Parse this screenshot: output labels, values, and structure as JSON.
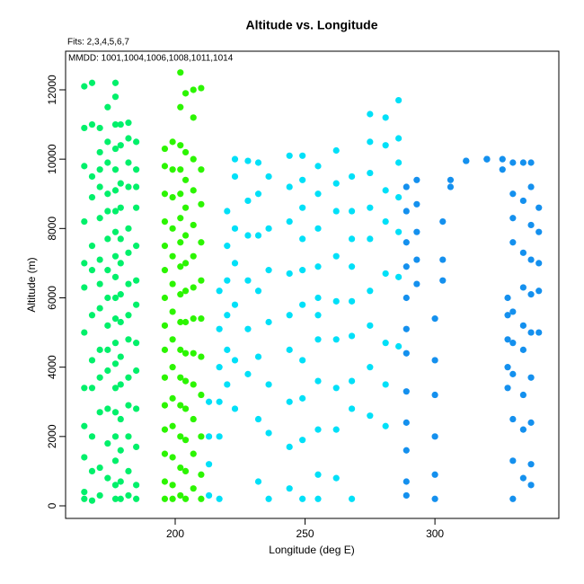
{
  "chart_data": {
    "type": "scatter",
    "title": "Altitude vs. Longitude",
    "annotations": [
      "Fits: 2,3,4,5,6,7",
      "MMDD: 1001,1004,1006,1008,1011,1014"
    ],
    "xlabel": "Longitude (deg E)",
    "ylabel": "Altitude (m)",
    "xlim": [
      157.8,
      347.7
    ],
    "ylim": [
      -363,
      13114
    ],
    "xticks": [
      200,
      250,
      300
    ],
    "yticks": [
      0,
      2000,
      4000,
      6000,
      8000,
      10000,
      12000
    ],
    "series": [
      {
        "color": "#00f06a",
        "x": [
          165,
          165,
          165,
          165,
          165,
          165,
          165,
          165,
          165,
          165,
          165,
          165,
          168,
          168,
          168,
          168,
          168,
          168,
          168,
          168,
          168,
          168,
          168,
          168,
          171,
          171,
          171,
          171,
          171,
          171,
          171,
          171,
          171,
          171,
          171,
          171,
          171,
          174,
          174,
          174,
          174,
          174,
          174,
          174,
          174,
          174,
          174,
          174,
          174,
          174,
          174,
          177,
          177,
          177,
          177,
          177,
          177,
          177,
          177,
          177,
          177,
          177,
          177,
          177,
          177,
          177,
          177,
          177,
          177,
          177,
          177,
          179,
          179,
          179,
          179,
          179,
          179,
          179,
          179,
          179,
          179,
          179,
          179,
          179,
          179,
          182,
          182,
          182,
          182,
          182,
          182,
          182,
          182,
          182,
          182,
          182,
          182,
          182,
          182,
          185,
          185,
          185,
          185,
          185,
          185,
          185,
          185,
          185,
          185,
          185,
          185,
          185
        ],
        "values": [
          12100,
          10900,
          9800,
          8200,
          7000,
          6300,
          5000,
          3400,
          2300,
          1400,
          400,
          200,
          12200,
          11000,
          9500,
          8900,
          7500,
          6800,
          5500,
          4200,
          3400,
          2000,
          1000,
          150,
          10900,
          10200,
          9700,
          9200,
          8300,
          7100,
          6400,
          5700,
          4500,
          3700,
          2700,
          1100,
          300,
          11500,
          10500,
          9900,
          9000,
          8500,
          7700,
          6800,
          6000,
          5200,
          4500,
          3900,
          2800,
          1800,
          800,
          12200,
          11800,
          11000,
          10300,
          9700,
          9100,
          8500,
          7900,
          7200,
          6600,
          6000,
          5400,
          4700,
          4100,
          3400,
          2700,
          2000,
          1300,
          600,
          200,
          11000,
          10400,
          9300,
          8600,
          7700,
          7000,
          6100,
          5300,
          4300,
          3500,
          2500,
          1600,
          700,
          200,
          11050,
          10600,
          9900,
          9200,
          8000,
          7300,
          6400,
          5500,
          4800,
          3700,
          2900,
          2000,
          1000,
          300,
          10500,
          9700,
          9200,
          8600,
          7500,
          6500,
          5800,
          4700,
          3900,
          2800,
          1700,
          600,
          200
        ]
      },
      {
        "color": "#2cf500",
        "x": [
          196,
          196,
          196,
          196,
          196,
          196,
          196,
          196,
          196,
          196,
          196,
          196,
          196,
          196,
          196,
          199,
          199,
          199,
          199,
          199,
          199,
          199,
          199,
          199,
          199,
          199,
          199,
          199,
          199,
          202,
          202,
          202,
          202,
          202,
          202,
          202,
          202,
          202,
          202,
          202,
          202,
          202,
          202,
          202,
          202,
          204,
          204,
          204,
          204,
          204,
          204,
          204,
          204,
          204,
          204,
          204,
          204,
          204,
          204,
          207,
          207,
          207,
          207,
          207,
          207,
          207,
          207,
          207,
          207,
          207,
          207,
          207,
          210,
          210,
          210,
          210,
          210,
          210,
          210,
          210,
          210,
          210,
          210
        ],
        "values": [
          10300,
          9800,
          9000,
          8200,
          7500,
          6800,
          6000,
          5200,
          4500,
          3700,
          2900,
          2200,
          1500,
          700,
          200,
          10500,
          9700,
          8900,
          8000,
          7200,
          6400,
          5600,
          4800,
          4000,
          3100,
          2300,
          1400,
          600,
          200,
          12500,
          11500,
          10400,
          9700,
          9000,
          8300,
          7600,
          6900,
          6100,
          5300,
          4500,
          3700,
          2900,
          2000,
          1100,
          300,
          11900,
          10200,
          9400,
          8600,
          7800,
          7000,
          6200,
          5300,
          4400,
          3600,
          2800,
          1900,
          1000,
          200,
          12000,
          11200,
          10000,
          9100,
          8100,
          7200,
          6300,
          5400,
          4400,
          3500,
          2500,
          1500,
          500,
          12050,
          9700,
          8700,
          7600,
          6500,
          5400,
          4300,
          3200,
          2000,
          900,
          200
        ]
      },
      {
        "color": "#00e0f8",
        "x": [
          213,
          213,
          213,
          213,
          217,
          217,
          217,
          217,
          217,
          217,
          220,
          220,
          220,
          220,
          220,
          220,
          223,
          223,
          223,
          223,
          223,
          223,
          223,
          228,
          228,
          228,
          228,
          228,
          228,
          232,
          232,
          232,
          232,
          232,
          232,
          232,
          236,
          236,
          236,
          236,
          236,
          236,
          236,
          244,
          244,
          244,
          244,
          244,
          244,
          244,
          244,
          244,
          249,
          249,
          249,
          249,
          249,
          249,
          249,
          249,
          249,
          249,
          255,
          255,
          255,
          255,
          255,
          255,
          255,
          255,
          255,
          255,
          255,
          262,
          262,
          262,
          262,
          262,
          262,
          262,
          262,
          262,
          268,
          268,
          268,
          268,
          268,
          268,
          268,
          268,
          268,
          275,
          275,
          275,
          275,
          275,
          275,
          275,
          275,
          275,
          281,
          281,
          281,
          281,
          281,
          281,
          281,
          281,
          286,
          286,
          286,
          286,
          286,
          286,
          286
        ],
        "values": [
          3000,
          2000,
          1200,
          300,
          6200,
          5100,
          4000,
          3000,
          2000,
          200,
          8500,
          7500,
          6500,
          5500,
          4500,
          3500,
          10000,
          9500,
          8000,
          7000,
          5800,
          4200,
          2800,
          9950,
          8800,
          7800,
          6500,
          5100,
          3800,
          9900,
          9000,
          7800,
          6200,
          4300,
          2500,
          700,
          9500,
          8000,
          6800,
          5300,
          3500,
          2100,
          200,
          10100,
          9200,
          8200,
          6700,
          5500,
          4500,
          3000,
          1700,
          500,
          10100,
          9400,
          8600,
          7700,
          6800,
          5800,
          4200,
          3100,
          1900,
          200,
          9800,
          9000,
          8000,
          6900,
          6000,
          5500,
          4800,
          3600,
          2200,
          900,
          200,
          10250,
          9300,
          8500,
          7200,
          5900,
          4800,
          3400,
          2200,
          800,
          9500,
          8500,
          7700,
          6900,
          5900,
          4900,
          3600,
          2800,
          200,
          11300,
          10500,
          9600,
          8600,
          7700,
          6200,
          5200,
          4000,
          2600,
          11200,
          10400,
          9100,
          8200,
          6700,
          4700,
          3500,
          2300,
          11700,
          10600,
          9900,
          8900,
          7900,
          6600,
          4600
        ]
      },
      {
        "color": "#1490ee",
        "x": [
          289,
          289,
          289,
          289,
          289,
          289,
          289,
          289,
          289,
          289,
          289,
          289,
          293,
          293,
          293,
          293,
          293,
          300,
          300,
          300,
          300,
          300,
          300,
          303,
          303,
          303,
          306,
          306,
          312,
          312,
          320,
          320,
          320,
          326,
          326,
          328,
          328,
          328,
          328,
          328,
          330,
          330,
          330,
          330,
          330,
          330,
          330,
          330,
          330,
          330,
          334,
          334,
          334,
          334,
          334,
          334,
          334,
          334,
          334,
          337,
          337,
          337,
          337,
          337,
          337,
          337,
          337,
          337,
          337,
          340,
          340,
          340,
          340,
          340
        ],
        "values": [
          9200,
          8500,
          7600,
          6900,
          6000,
          5100,
          4400,
          3300,
          2400,
          1600,
          700,
          300,
          9400,
          8700,
          7900,
          7100,
          6400,
          5400,
          4200,
          3200,
          2000,
          900,
          200,
          8200,
          7100,
          6500,
          9400,
          9200,
          9950,
          9950,
          10000,
          10000,
          10000,
          10000,
          9700,
          6000,
          5500,
          4800,
          4000,
          3400,
          9900,
          9000,
          8300,
          7600,
          5600,
          4700,
          3800,
          2500,
          1300,
          200,
          9900,
          8800,
          7300,
          6300,
          5200,
          4500,
          3200,
          2200,
          800,
          9900,
          9200,
          8100,
          7100,
          6100,
          5000,
          3700,
          2400,
          1200,
          600,
          8600,
          7900,
          7000,
          6200,
          5000
        ]
      }
    ]
  }
}
